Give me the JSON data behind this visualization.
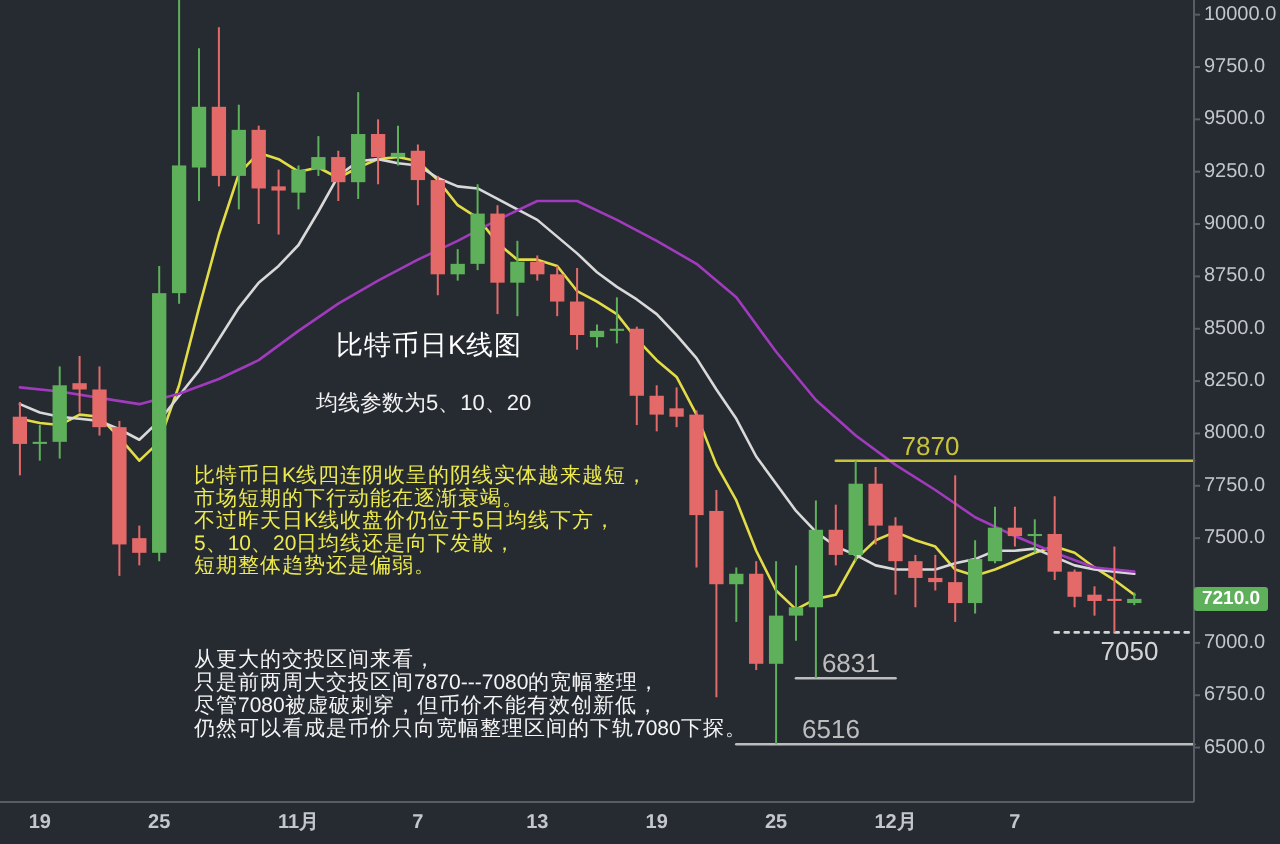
{
  "chart_data": {
    "type": "candlestick",
    "x": [
      "--10-18",
      "--10-19",
      "--10-20",
      "--10-21",
      "--10-22",
      "--10-23",
      "--10-24",
      "--10-25",
      "--10-26",
      "--10-27",
      "--10-28",
      "--10-29",
      "--10-30",
      "--10-31",
      "--11-01",
      "--11-02",
      "--11-03",
      "--11-04",
      "--11-05",
      "--11-06",
      "--11-07",
      "--11-08",
      "--11-09",
      "--11-10",
      "--11-11",
      "--11-12",
      "--11-13",
      "--11-14",
      "--11-15",
      "--11-16",
      "--11-17",
      "--11-18",
      "--11-19",
      "--11-20",
      "--11-21",
      "--11-22",
      "--11-23",
      "--11-24",
      "--11-25",
      "--11-26",
      "--11-27",
      "--11-28",
      "--11-29",
      "--11-30",
      "--12-01",
      "--12-02",
      "--12-03",
      "--12-04",
      "--12-05",
      "--12-06",
      "--12-07",
      "--12-08",
      "--12-09",
      "--12-10",
      "--12-11",
      "--12-12",
      "--12-13"
    ],
    "ohlc": [
      [
        8080,
        8150,
        7800,
        7950
      ],
      [
        7950,
        8040,
        7870,
        7960
      ],
      [
        7960,
        8320,
        7880,
        8230
      ],
      [
        8240,
        8370,
        8100,
        8210
      ],
      [
        8210,
        8320,
        7990,
        8030
      ],
      [
        8030,
        8060,
        7320,
        7470
      ],
      [
        7500,
        7560,
        7370,
        7430
      ],
      [
        7430,
        8800,
        7390,
        8670
      ],
      [
        8670,
        10070,
        8620,
        9280
      ],
      [
        9270,
        9840,
        9110,
        9560
      ],
      [
        9560,
        9940,
        9180,
        9230
      ],
      [
        9230,
        9570,
        9070,
        9450
      ],
      [
        9450,
        9470,
        9000,
        9170
      ],
      [
        9180,
        9260,
        8950,
        9160
      ],
      [
        9150,
        9280,
        9070,
        9260
      ],
      [
        9260,
        9420,
        9230,
        9320
      ],
      [
        9320,
        9350,
        9110,
        9200
      ],
      [
        9200,
        9630,
        9120,
        9430
      ],
      [
        9430,
        9500,
        9190,
        9320
      ],
      [
        9320,
        9470,
        9280,
        9340
      ],
      [
        9350,
        9380,
        9090,
        9210
      ],
      [
        9210,
        9230,
        8660,
        8760
      ],
      [
        8760,
        8880,
        8730,
        8810
      ],
      [
        8810,
        9190,
        8780,
        9050
      ],
      [
        9050,
        9090,
        8570,
        8720
      ],
      [
        8720,
        8920,
        8560,
        8820
      ],
      [
        8820,
        8850,
        8730,
        8760
      ],
      [
        8760,
        8800,
        8560,
        8630
      ],
      [
        8630,
        8790,
        8400,
        8470
      ],
      [
        8460,
        8520,
        8410,
        8490
      ],
      [
        8490,
        8650,
        8430,
        8500
      ],
      [
        8500,
        8510,
        8040,
        8180
      ],
      [
        8180,
        8230,
        8010,
        8090
      ],
      [
        8120,
        8220,
        8030,
        8080
      ],
      [
        8090,
        8110,
        7360,
        7610
      ],
      [
        7630,
        7730,
        6740,
        7280
      ],
      [
        7280,
        7360,
        7100,
        7330
      ],
      [
        7330,
        7390,
        6870,
        6900
      ],
      [
        6900,
        7390,
        6516,
        7130
      ],
      [
        7130,
        7370,
        7010,
        7170
      ],
      [
        7170,
        7680,
        6831,
        7540
      ],
      [
        7540,
        7660,
        7370,
        7420
      ],
      [
        7420,
        7870,
        7390,
        7760
      ],
      [
        7760,
        7840,
        7470,
        7560
      ],
      [
        7560,
        7600,
        7230,
        7390
      ],
      [
        7390,
        7420,
        7170,
        7310
      ],
      [
        7310,
        7420,
        7250,
        7290
      ],
      [
        7290,
        7800,
        7100,
        7190
      ],
      [
        7190,
        7490,
        7140,
        7400
      ],
      [
        7390,
        7650,
        7380,
        7550
      ],
      [
        7550,
        7650,
        7460,
        7510
      ],
      [
        7510,
        7590,
        7430,
        7520
      ],
      [
        7520,
        7700,
        7300,
        7340
      ],
      [
        7340,
        7350,
        7170,
        7220
      ],
      [
        7230,
        7270,
        7130,
        7200
      ],
      [
        7210,
        7460,
        7050,
        7200
      ],
      [
        7190,
        7240,
        7180,
        7210
      ]
    ],
    "colors": [
      "#e46a6a",
      "#5fb05a",
      "#5fb05a",
      "#e46a6a",
      "#e46a6a",
      "#e46a6a",
      "#e46a6a",
      "#5fb05a",
      "#5fb05a",
      "#5fb05a",
      "#e46a6a",
      "#5fb05a",
      "#e46a6a",
      "#e46a6a",
      "#5fb05a",
      "#5fb05a",
      "#e46a6a",
      "#5fb05a",
      "#e46a6a",
      "#5fb05a",
      "#e46a6a",
      "#e46a6a",
      "#5fb05a",
      "#5fb05a",
      "#e46a6a",
      "#5fb05a",
      "#e46a6a",
      "#e46a6a",
      "#e46a6a",
      "#5fb05a",
      "#5fb05a",
      "#e46a6a",
      "#e46a6a",
      "#e46a6a",
      "#e46a6a",
      "#e46a6a",
      "#5fb05a",
      "#e46a6a",
      "#5fb05a",
      "#5fb05a",
      "#5fb05a",
      "#e46a6a",
      "#5fb05a",
      "#e46a6a",
      "#e46a6a",
      "#e46a6a",
      "#e46a6a",
      "#e46a6a",
      "#5fb05a",
      "#5fb05a",
      "#e46a6a",
      "#5fb05a",
      "#e46a6a",
      "#e46a6a",
      "#e46a6a",
      "#e46a6a",
      "#5fb05a"
    ],
    "series": [
      {
        "type": "line",
        "color": "#e2dc46",
        "values": [
          8070,
          8050,
          8040,
          8090,
          8080,
          7980,
          7870,
          7960,
          8230,
          8600,
          8950,
          9240,
          9340,
          9310,
          9250,
          9270,
          9220,
          9270,
          9310,
          9320,
          9300,
          9210,
          9090,
          9030,
          8910,
          8830,
          8830,
          8800,
          8680,
          8630,
          8570,
          8450,
          8350,
          8270,
          8090,
          7850,
          7680,
          7440,
          7250,
          7160,
          7210,
          7230,
          7400,
          7490,
          7530,
          7490,
          7460,
          7350,
          7320,
          7350,
          7390,
          7430,
          7460,
          7430,
          7360,
          7300,
          7230
        ]
      },
      {
        "type": "line",
        "color": "#d9d9d9",
        "values": [
          8140,
          8100,
          8080,
          8070,
          8060,
          8020,
          7970,
          8060,
          8180,
          8300,
          8450,
          8600,
          8720,
          8800,
          8900,
          9060,
          9230,
          9300,
          9310,
          9290,
          9280,
          9220,
          9180,
          9170,
          9120,
          9070,
          9020,
          8940,
          8860,
          8770,
          8700,
          8640,
          8570,
          8470,
          8360,
          8210,
          8070,
          7890,
          7760,
          7630,
          7530,
          7460,
          7420,
          7370,
          7350,
          7350,
          7350,
          7380,
          7400,
          7440,
          7440,
          7450,
          7410,
          7370,
          7350,
          7340,
          7330
        ]
      },
      {
        "type": "line",
        "color": "#a13bbd",
        "x": [
          "--10-18",
          "--10-20",
          "--10-22",
          "--10-24",
          "--10-26",
          "--10-28",
          "--10-30",
          "--11-01",
          "--11-03",
          "--11-05",
          "--11-07",
          "--11-09",
          "--11-11",
          "--11-13",
          "--11-15",
          "--11-17",
          "--11-19",
          "--11-21",
          "--11-23",
          "--11-25",
          "--11-27",
          "--11-29",
          "--12-01",
          "--12-03",
          "--12-05",
          "--12-07",
          "--12-09",
          "--12-11",
          "--12-13"
        ],
        "values": [
          8220,
          8200,
          8170,
          8140,
          8190,
          8260,
          8350,
          8490,
          8620,
          8730,
          8830,
          8920,
          9020,
          9110,
          9110,
          9020,
          8920,
          8810,
          8650,
          8390,
          8160,
          7990,
          7850,
          7730,
          7600,
          7510,
          7430,
          7360,
          7340
        ]
      },
      {
        "type": "line",
        "color": "#c9c43a",
        "x": [
          "--11-28",
          "--12-16"
        ],
        "values": [
          7870,
          7870
        ]
      },
      {
        "type": "line",
        "color": "#bdbdbd",
        "x": [
          "--11-26",
          "--12-01"
        ],
        "values": [
          6831,
          6831
        ]
      },
      {
        "type": "line",
        "color": "#bdbdbd",
        "x": [
          "--11-23",
          "--12-16"
        ],
        "values": [
          6516,
          6516
        ]
      },
      {
        "type": "line",
        "color": "#d4d4d4",
        "line_style": "dotted",
        "x": [
          "--12-09",
          "--12-16"
        ],
        "values": [
          7050,
          7050
        ]
      }
    ],
    "xlim": [
      "--10-17",
      "--12-16"
    ],
    "xticks": [
      {
        "value": "--10-19",
        "label": "19"
      },
      {
        "value": "--10-25",
        "label": "25"
      },
      {
        "value": "--11-01",
        "label": "11月"
      },
      {
        "value": "--11-07",
        "label": "7"
      },
      {
        "value": "--11-13",
        "label": "13"
      },
      {
        "value": "--11-19",
        "label": "19"
      },
      {
        "value": "--11-25",
        "label": "25"
      },
      {
        "value": "--12-01",
        "label": "12月"
      },
      {
        "value": "--12-07",
        "label": "7"
      }
    ],
    "ylim": [
      6240,
      10070
    ],
    "yticks": [
      {
        "value": 6500,
        "label": "6500.0"
      },
      {
        "value": 6750,
        "label": "6750.0"
      },
      {
        "value": 7000,
        "label": "7000.0"
      },
      {
        "value": 7250,
        "label": null
      },
      {
        "value": 7500,
        "label": "7500.0"
      },
      {
        "value": 7750,
        "label": "7750.0"
      },
      {
        "value": 8000,
        "label": "8000.0"
      },
      {
        "value": 8250,
        "label": "8250.0"
      },
      {
        "value": 8500,
        "label": "8500.0"
      },
      {
        "value": 8750,
        "label": "8750.0"
      },
      {
        "value": 9000,
        "label": "9000.0"
      },
      {
        "value": 9250,
        "label": "9250.0"
      },
      {
        "value": 9500,
        "label": "9500.0"
      },
      {
        "value": 9750,
        "label": "9750.0"
      },
      {
        "value": 10000,
        "label": "10000.0"
      }
    ],
    "annotations": [
      "比特币日K线图",
      "均线参数为5、10、20",
      "比特币日K线四连阴收呈的阴线实体越来越短，",
      "市场短期的下行动能在逐渐衰竭。",
      "不过昨天日K线收盘价仍位于5日均线下方，",
      "5、10、20日均线还是向下发散，",
      "短期整体趋势还是偏弱。",
      "从更大的交投区间来看，",
      "只是前两周大交投区间7870---7080的宽幅整理，",
      "尽管7080被虚破刺穿，但币价不能有效创新低，",
      "仍然可以看成是币价只向宽幅整理区间的下轨7080下探。",
      "7210.0",
      {
        "text": "7870",
        "x": "--12-01",
        "y": 7870
      },
      {
        "text": "6831",
        "x": "--11-27",
        "y": 6831
      },
      {
        "text": "6516",
        "x": "--11-26",
        "y": 6516
      },
      {
        "text": "7050",
        "x": "--12-11",
        "y": 7050
      }
    ]
  }
}
